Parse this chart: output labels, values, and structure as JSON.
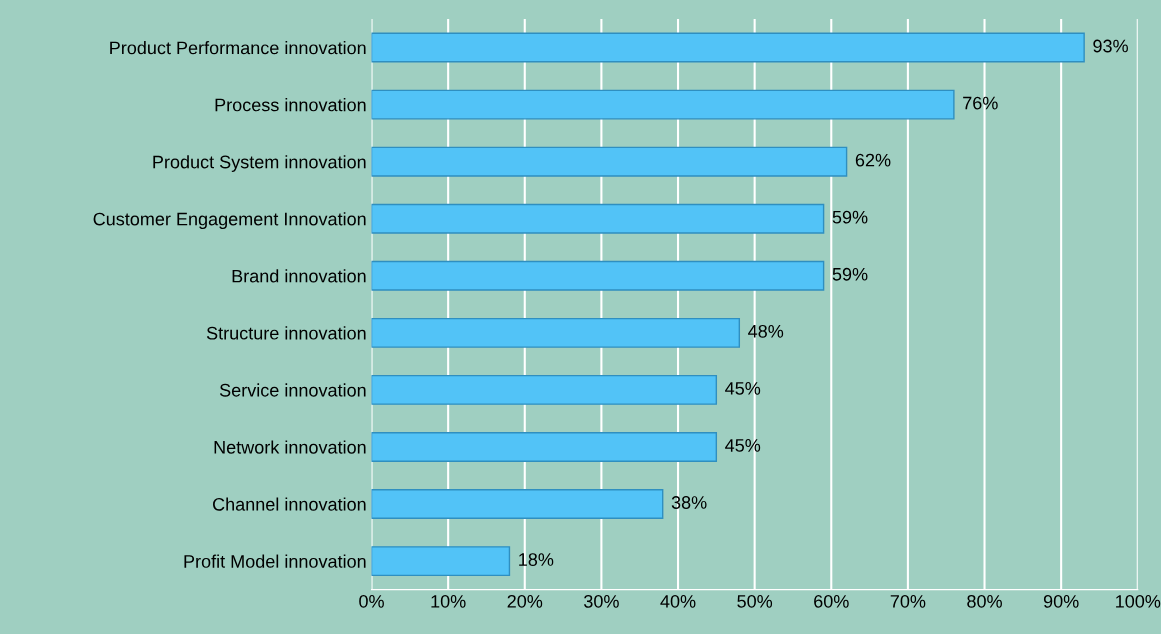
{
  "chart_data": {
    "type": "bar",
    "orientation": "horizontal",
    "categories": [
      "Product Performance innovation",
      "Process innovation",
      "Product System innovation",
      "Customer Engagement Innovation",
      "Brand innovation",
      "Structure innovation",
      "Service innovation",
      "Network innovation",
      "Channel innovation",
      "Profit Model innovation"
    ],
    "values": [
      93,
      76,
      62,
      59,
      59,
      48,
      45,
      45,
      38,
      18
    ],
    "value_labels": [
      "93%",
      "76%",
      "62%",
      "59%",
      "59%",
      "48%",
      "45%",
      "45%",
      "38%",
      "18%"
    ],
    "color": "#52c3f7",
    "xlim": [
      0,
      100
    ],
    "xticks": [
      {
        "value": 0,
        "label": "0%"
      },
      {
        "value": 10,
        "label": "10%"
      },
      {
        "value": 20,
        "label": "20%"
      },
      {
        "value": 30,
        "label": "30%"
      },
      {
        "value": 40,
        "label": "40%"
      },
      {
        "value": 50,
        "label": "50%"
      },
      {
        "value": 60,
        "label": "60%"
      },
      {
        "value": 70,
        "label": "70%"
      },
      {
        "value": 80,
        "label": "80%"
      },
      {
        "value": 90,
        "label": "90%"
      },
      {
        "value": 100,
        "label": "100%"
      }
    ],
    "grid": "x",
    "legend": false
  }
}
